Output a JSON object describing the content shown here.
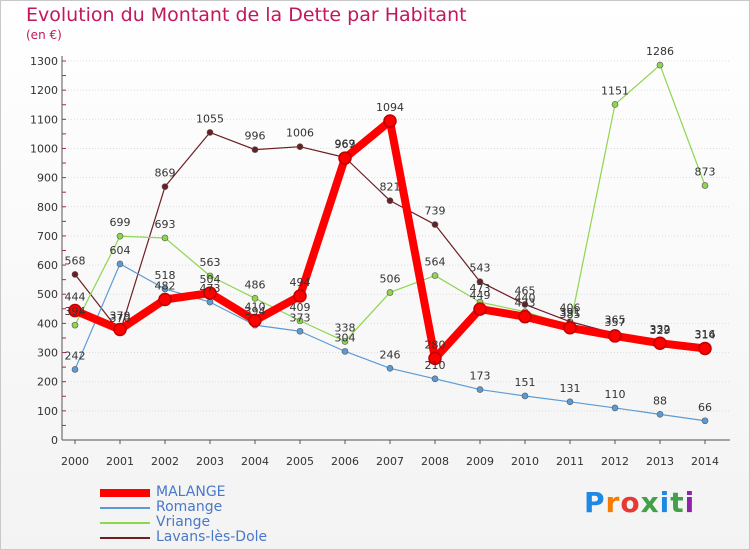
{
  "header": {
    "title": "Evolution du Montant de la Dette par Habitant",
    "unit": "(en €)"
  },
  "brand": {
    "letters": [
      "P",
      "r",
      "o",
      "x",
      "i",
      "t",
      "i"
    ]
  },
  "chart_data": {
    "type": "line",
    "title": "Evolution du Montant de la Dette par Habitant",
    "ylabel": "(en €)",
    "xlabel": "",
    "ylim": [
      0,
      1300
    ],
    "yticks": [
      0,
      100,
      200,
      300,
      400,
      500,
      600,
      700,
      800,
      900,
      1000,
      1100,
      1200,
      1300
    ],
    "grid": "horizontal",
    "legend": "bottom-left",
    "x": [
      "2000",
      "2001",
      "2002",
      "2003",
      "2004",
      "2005",
      "2006",
      "2007",
      "2008",
      "2009",
      "2010",
      "2011",
      "2012",
      "2013",
      "2014"
    ],
    "series": [
      {
        "name": "Lavans-lès-Dole",
        "color": "#6b1f22",
        "values": [
          568,
          370,
          869,
          1055,
          996,
          1006,
          969,
          821,
          739,
          543,
          465,
          406,
          365,
          329,
          316
        ]
      },
      {
        "name": "Vriange",
        "color": "#8ed64e",
        "values": [
          394,
          699,
          693,
          563,
          486,
          409,
          338,
          506,
          564,
          473,
          440,
          391,
          1151,
          1286,
          873
        ]
      },
      {
        "name": "Romange",
        "color": "#5b9bd5",
        "values": [
          242,
          604,
          518,
          473,
          394,
          373,
          304,
          246,
          210,
          173,
          151,
          131,
          110,
          88,
          66
        ]
      },
      {
        "name": "MALANGE",
        "color": "#ff0000",
        "values": [
          444,
          379,
          482,
          504,
          410,
          494,
          967,
          1094,
          280,
          449,
          423,
          385,
          357,
          332,
          314
        ]
      }
    ]
  }
}
